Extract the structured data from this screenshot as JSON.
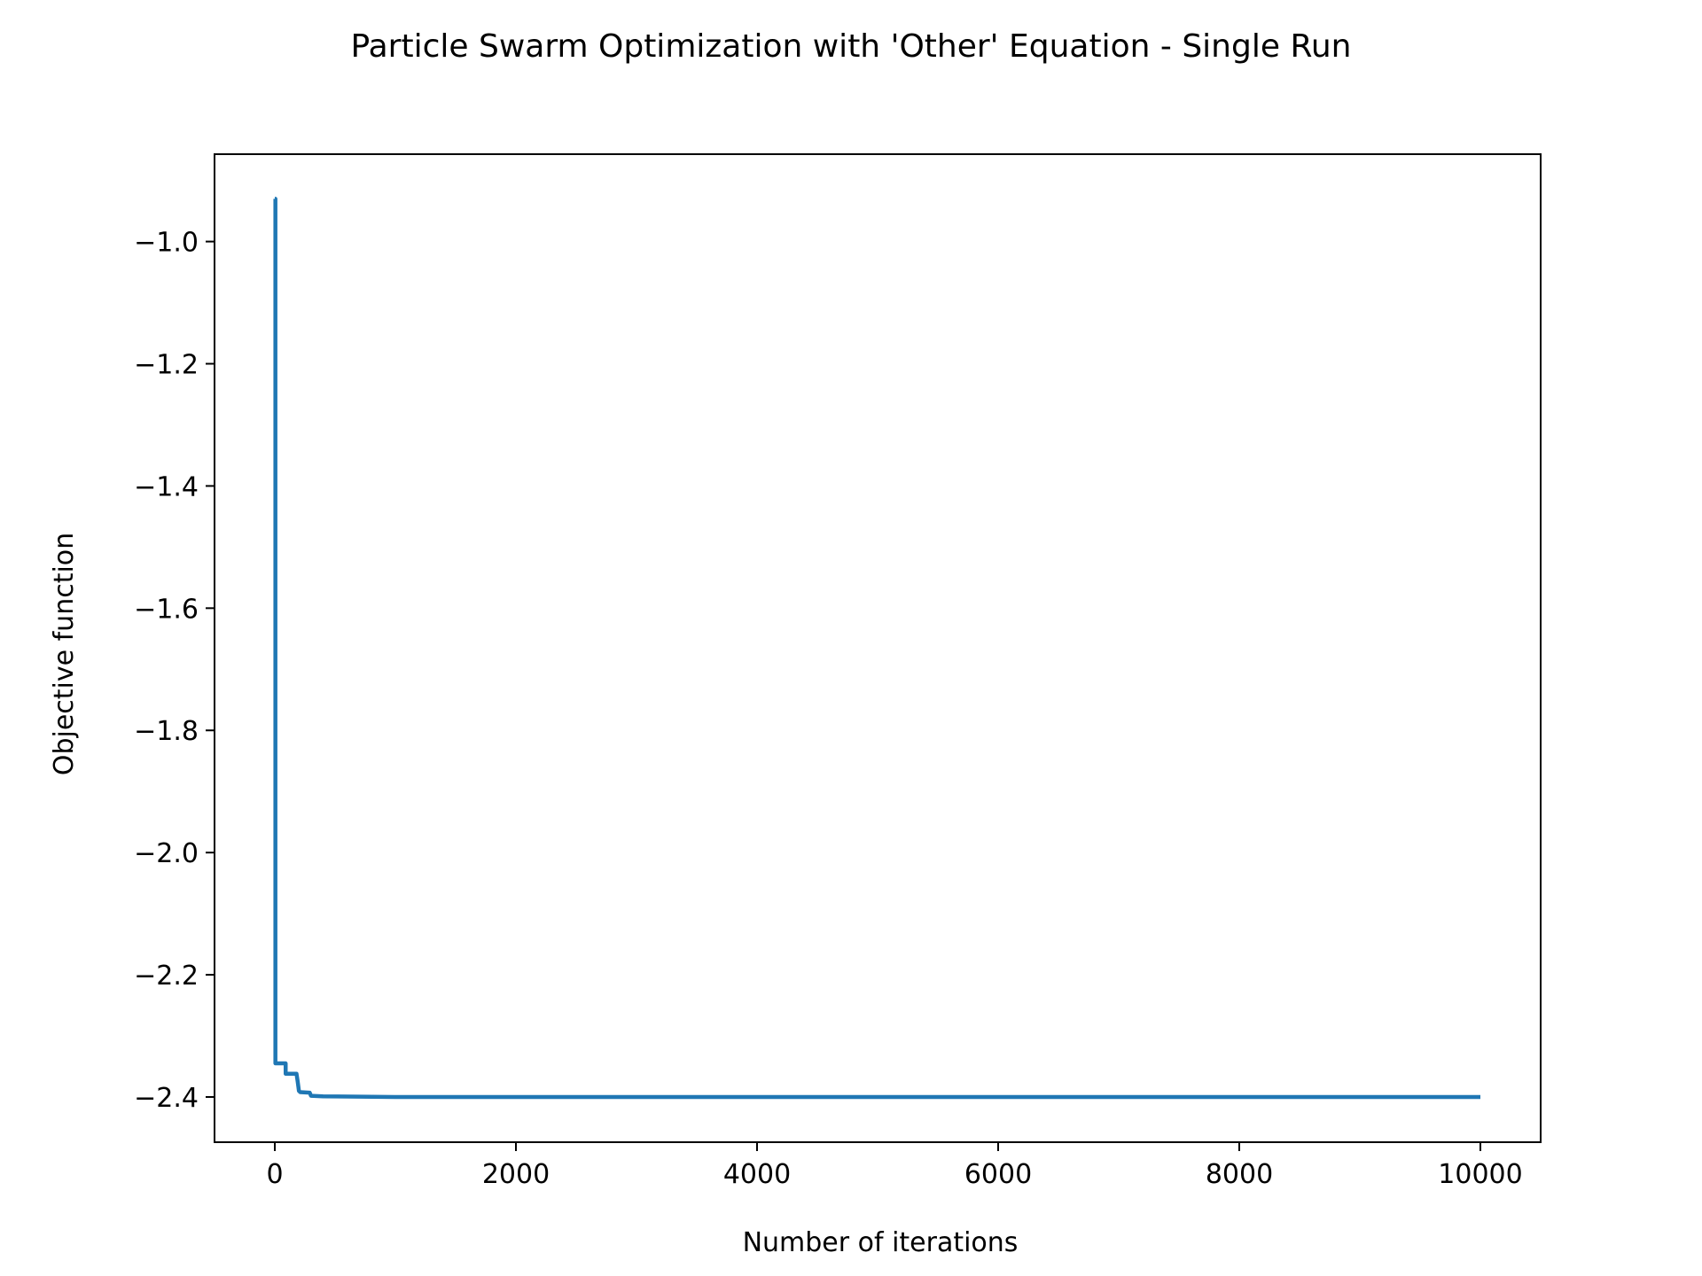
{
  "chart_data": {
    "type": "line",
    "title": "Particle Swarm Optimization with 'Other' Equation - Single Run",
    "xlabel": "Number of iterations",
    "ylabel": "Objective function",
    "xlim": [
      -500,
      10500
    ],
    "ylim": [
      -2.474,
      -0.857
    ],
    "grid": false,
    "legend": "none",
    "xticks": [
      0,
      2000,
      4000,
      6000,
      8000,
      10000
    ],
    "xtick_labels": [
      "0",
      "2000",
      "4000",
      "6000",
      "8000",
      "10000"
    ],
    "yticks": [
      -1.0,
      -1.2,
      -1.4,
      -1.6,
      -1.8,
      -2.0,
      -2.2,
      -2.4
    ],
    "ytick_labels": [
      "−1.0",
      "−1.2",
      "−1.4",
      "−1.6",
      "−1.8",
      "−2.0",
      "−2.2",
      "−2.4"
    ],
    "series": [
      {
        "color": "#1f77b4",
        "x": [
          0,
          5,
          5,
          90,
          90,
          180,
          190,
          200,
          210,
          290,
          300,
          400,
          1000,
          5000,
          10000
        ],
        "y": [
          -0.93,
          -0.93,
          -2.345,
          -2.345,
          -2.362,
          -2.362,
          -2.375,
          -2.39,
          -2.392,
          -2.393,
          -2.398,
          -2.399,
          -2.4,
          -2.4,
          -2.4
        ]
      }
    ]
  }
}
